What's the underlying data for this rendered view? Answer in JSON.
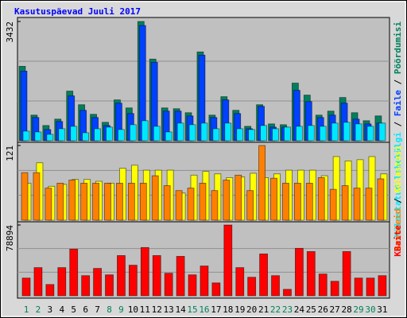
{
  "title": "Kasutuspäevad Juuli 2017",
  "legend_separator": " / ",
  "chart_data": [
    {
      "type": "bar",
      "ylim": [
        0,
        3432
      ],
      "yticks": [
        3432
      ],
      "series": [
        {
          "name": "Pöördumisi",
          "color": "#00805c",
          "values": [
            2142,
            737,
            438,
            622,
            1428,
            1036,
            760,
            530,
            1175,
            944,
            3432,
            2349,
            944,
            921,
            806,
            2556,
            737,
            1267,
            875,
            415,
            1036,
            484,
            461,
            1658,
            1313,
            737,
            852,
            1244,
            806,
            576,
            714
          ]
        },
        {
          "name": "Faile",
          "color": "#0040ff",
          "values": [
            2004,
            668,
            322,
            553,
            1290,
            875,
            668,
            438,
            1082,
            783,
            3316,
            2257,
            852,
            852,
            714,
            2464,
            668,
            1175,
            783,
            345,
            990,
            392,
            392,
            1451,
            1128,
            668,
            737,
            1082,
            622,
            484,
            507
          ]
        },
        {
          "name": "Külastatud lehekülgi",
          "color": "#00e8ff",
          "values": [
            276,
            253,
            184,
            345,
            415,
            230,
            345,
            392,
            322,
            461,
            576,
            415,
            253,
            507,
            461,
            507,
            345,
            507,
            345,
            322,
            438,
            345,
            392,
            415,
            438,
            415,
            507,
            530,
            484,
            415,
            507
          ]
        }
      ]
    },
    {
      "type": "bar",
      "ylim": [
        0,
        121
      ],
      "yticks": [
        121
      ],
      "series": [
        {
          "name": "Külastusi",
          "color": "#ffff00",
          "values": [
            60,
            93,
            55,
            58,
            66,
            66,
            63,
            60,
            84,
            89,
            81,
            81,
            81,
            44,
            73,
            79,
            75,
            69,
            70,
            76,
            69,
            75,
            81,
            81,
            81,
            72,
            103,
            96,
            98,
            103,
            75
          ]
        },
        {
          "name": "Arvuteid",
          "color": "#ff8000",
          "values": [
            77,
            77,
            52,
            60,
            65,
            60,
            60,
            60,
            60,
            60,
            60,
            72,
            56,
            48,
            52,
            60,
            48,
            65,
            73,
            48,
            121,
            68,
            60,
            60,
            60,
            69,
            50,
            56,
            52,
            52,
            67
          ]
        }
      ]
    },
    {
      "type": "bar",
      "ylim": [
        0,
        78894
      ],
      "yticks": [
        78894
      ],
      "categories": [
        "1",
        "2",
        "3",
        "4",
        "5",
        "6",
        "7",
        "8",
        "9",
        "10",
        "11",
        "12",
        "13",
        "14",
        "15",
        "16",
        "17",
        "18",
        "19",
        "20",
        "21",
        "22",
        "23",
        "24",
        "25",
        "26",
        "27",
        "28",
        "29",
        "30",
        "31"
      ],
      "category_colors": [
        "#00805c",
        "#00805c",
        "#000000",
        "#000000",
        "#000000",
        "#000000",
        "#000000",
        "#00805c",
        "#00805c",
        "#000000",
        "#000000",
        "#000000",
        "#000000",
        "#000000",
        "#00805c",
        "#00805c",
        "#000000",
        "#000000",
        "#000000",
        "#000000",
        "#000000",
        "#00805c",
        "#00805c",
        "#000000",
        "#000000",
        "#000000",
        "#000000",
        "#000000",
        "#00805c",
        "#00805c",
        "#000000"
      ],
      "series": [
        {
          "name": "KBaite",
          "color": "#ff0000",
          "values": [
            19723,
            31378,
            12551,
            31378,
            51997,
            22413,
            30481,
            23309,
            44825,
            34067,
            53790,
            44825,
            25102,
            43929,
            23309,
            33171,
            14344,
            78894,
            31378,
            20620,
            46618,
            22413,
            7172,
            52894,
            49308,
            24206,
            16137,
            49308,
            19723,
            19723,
            22413
          ]
        }
      ]
    }
  ]
}
